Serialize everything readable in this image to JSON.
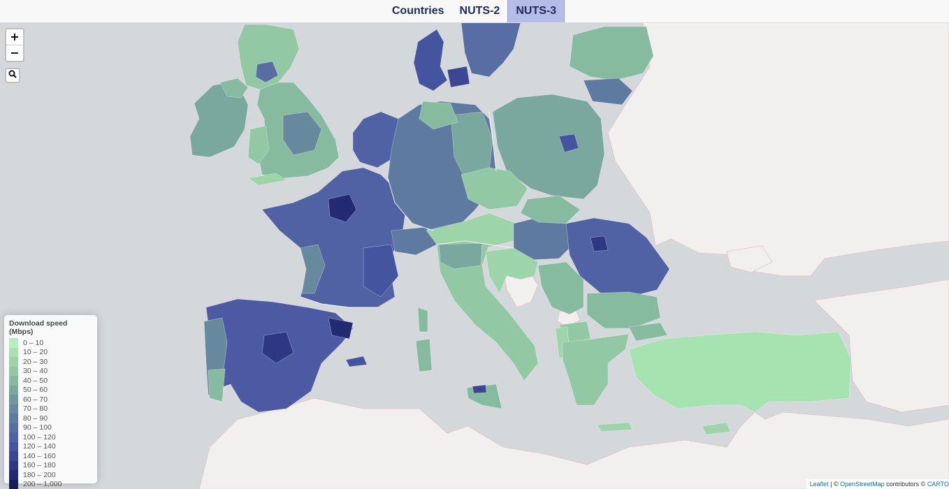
{
  "tabs": [
    {
      "label": "Countries",
      "active": false
    },
    {
      "label": "NUTS-2",
      "active": false
    },
    {
      "label": "NUTS-3",
      "active": true
    }
  ],
  "zoom": {
    "in_label": "+",
    "out_label": "−"
  },
  "search": {
    "icon": "search-icon"
  },
  "legend": {
    "title": "Download speed (Mbps)",
    "items": [
      {
        "label": "0 – 10",
        "color": "#b6ecbe"
      },
      {
        "label": "10 – 20",
        "color": "#a7e2b1"
      },
      {
        "label": "20 – 30",
        "color": "#9ed4aa"
      },
      {
        "label": "30 – 40",
        "color": "#92c8a4"
      },
      {
        "label": "40 – 50",
        "color": "#86bba0"
      },
      {
        "label": "50 – 60",
        "color": "#7aa79e"
      },
      {
        "label": "60 – 70",
        "color": "#70979c"
      },
      {
        "label": "70 – 80",
        "color": "#67899d"
      },
      {
        "label": "80 – 90",
        "color": "#5f7aa0"
      },
      {
        "label": "90 – 100",
        "color": "#586da3"
      },
      {
        "label": "100 – 120",
        "color": "#5062a4"
      },
      {
        "label": "120 – 140",
        "color": "#45549e"
      },
      {
        "label": "140 – 160",
        "color": "#3b4793"
      },
      {
        "label": "160 – 180",
        "color": "#2e3783"
      },
      {
        "label": "180 – 200",
        "color": "#222a72"
      },
      {
        "label": "200 – 1,000",
        "color": "#161c5c"
      }
    ]
  },
  "attribution": {
    "leaflet": "Leaflet",
    "sep1": " | © ",
    "osm": "OpenStreetMap",
    "contributors": " contributors © ",
    "carto": "CARTO"
  },
  "colors": {
    "sea": "#d5d8db",
    "land": "#f2f0ee",
    "border": "#e2b6bb"
  }
}
